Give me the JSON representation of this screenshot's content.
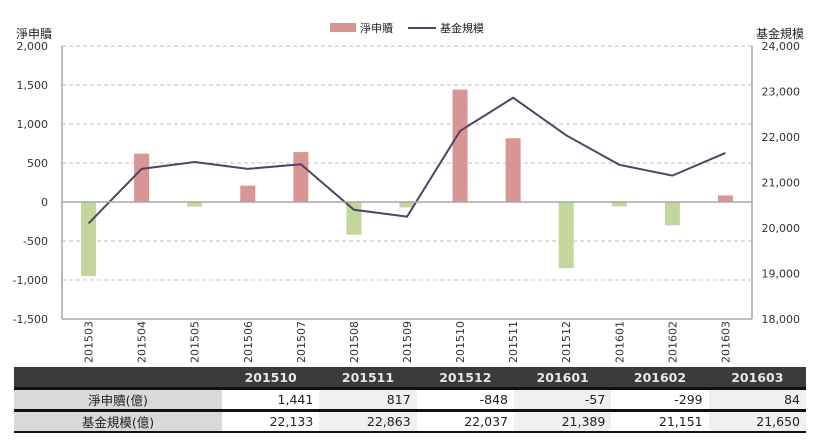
{
  "legend": {
    "bar_label": "淨申贖",
    "line_label": "基金規模"
  },
  "axes": {
    "left_title": "淨申贖",
    "right_title": "基金規模",
    "left_ticks": [
      "2,000",
      "1,500",
      "1,000",
      "500",
      "0",
      "-500",
      "-1,000",
      "-1,500"
    ],
    "right_ticks": [
      "24,000",
      "23,000",
      "22,000",
      "21,000",
      "20,000",
      "19,000",
      "18,000"
    ]
  },
  "colors": {
    "positive_bar": "#d99594",
    "negative_bar": "#c3d69b",
    "line": "#4f4466",
    "grid": "#bfbfbf",
    "table_header_bg": "#3b3b3b",
    "table_label_bg": "#d9d9d9"
  },
  "chart_data": {
    "type": "bar+line",
    "title": "",
    "categories": [
      "201503",
      "201504",
      "201505",
      "201506",
      "201507",
      "201508",
      "201509",
      "201510",
      "201511",
      "201512",
      "201601",
      "201602",
      "201603"
    ],
    "series": [
      {
        "name": "淨申贖",
        "type": "bar",
        "axis": "left",
        "values": [
          -950,
          620,
          -60,
          210,
          640,
          -420,
          -70,
          1441,
          817,
          -848,
          -57,
          -299,
          84
        ]
      },
      {
        "name": "基金規模",
        "type": "line",
        "axis": "right",
        "values": [
          20100,
          21300,
          21450,
          21300,
          21400,
          20400,
          20250,
          22133,
          22863,
          22037,
          21389,
          21151,
          21650
        ]
      }
    ],
    "ylabel": "淨申贖",
    "y2label": "基金規模",
    "ylim": [
      -1500,
      2000
    ],
    "y2lim": [
      18000,
      24000
    ],
    "grid": true,
    "legend_position": "top"
  },
  "table": {
    "headers": [
      "",
      "201510",
      "201511",
      "201512",
      "201601",
      "201602",
      "201603"
    ],
    "rows": [
      {
        "label": "淨申贖(億)",
        "values": [
          "1,441",
          "817",
          "-848",
          "-57",
          "-299",
          "84"
        ]
      },
      {
        "label": "基金規模(億)",
        "values": [
          "22,133",
          "22,863",
          "22,037",
          "21,389",
          "21,151",
          "21,650"
        ]
      }
    ]
  }
}
